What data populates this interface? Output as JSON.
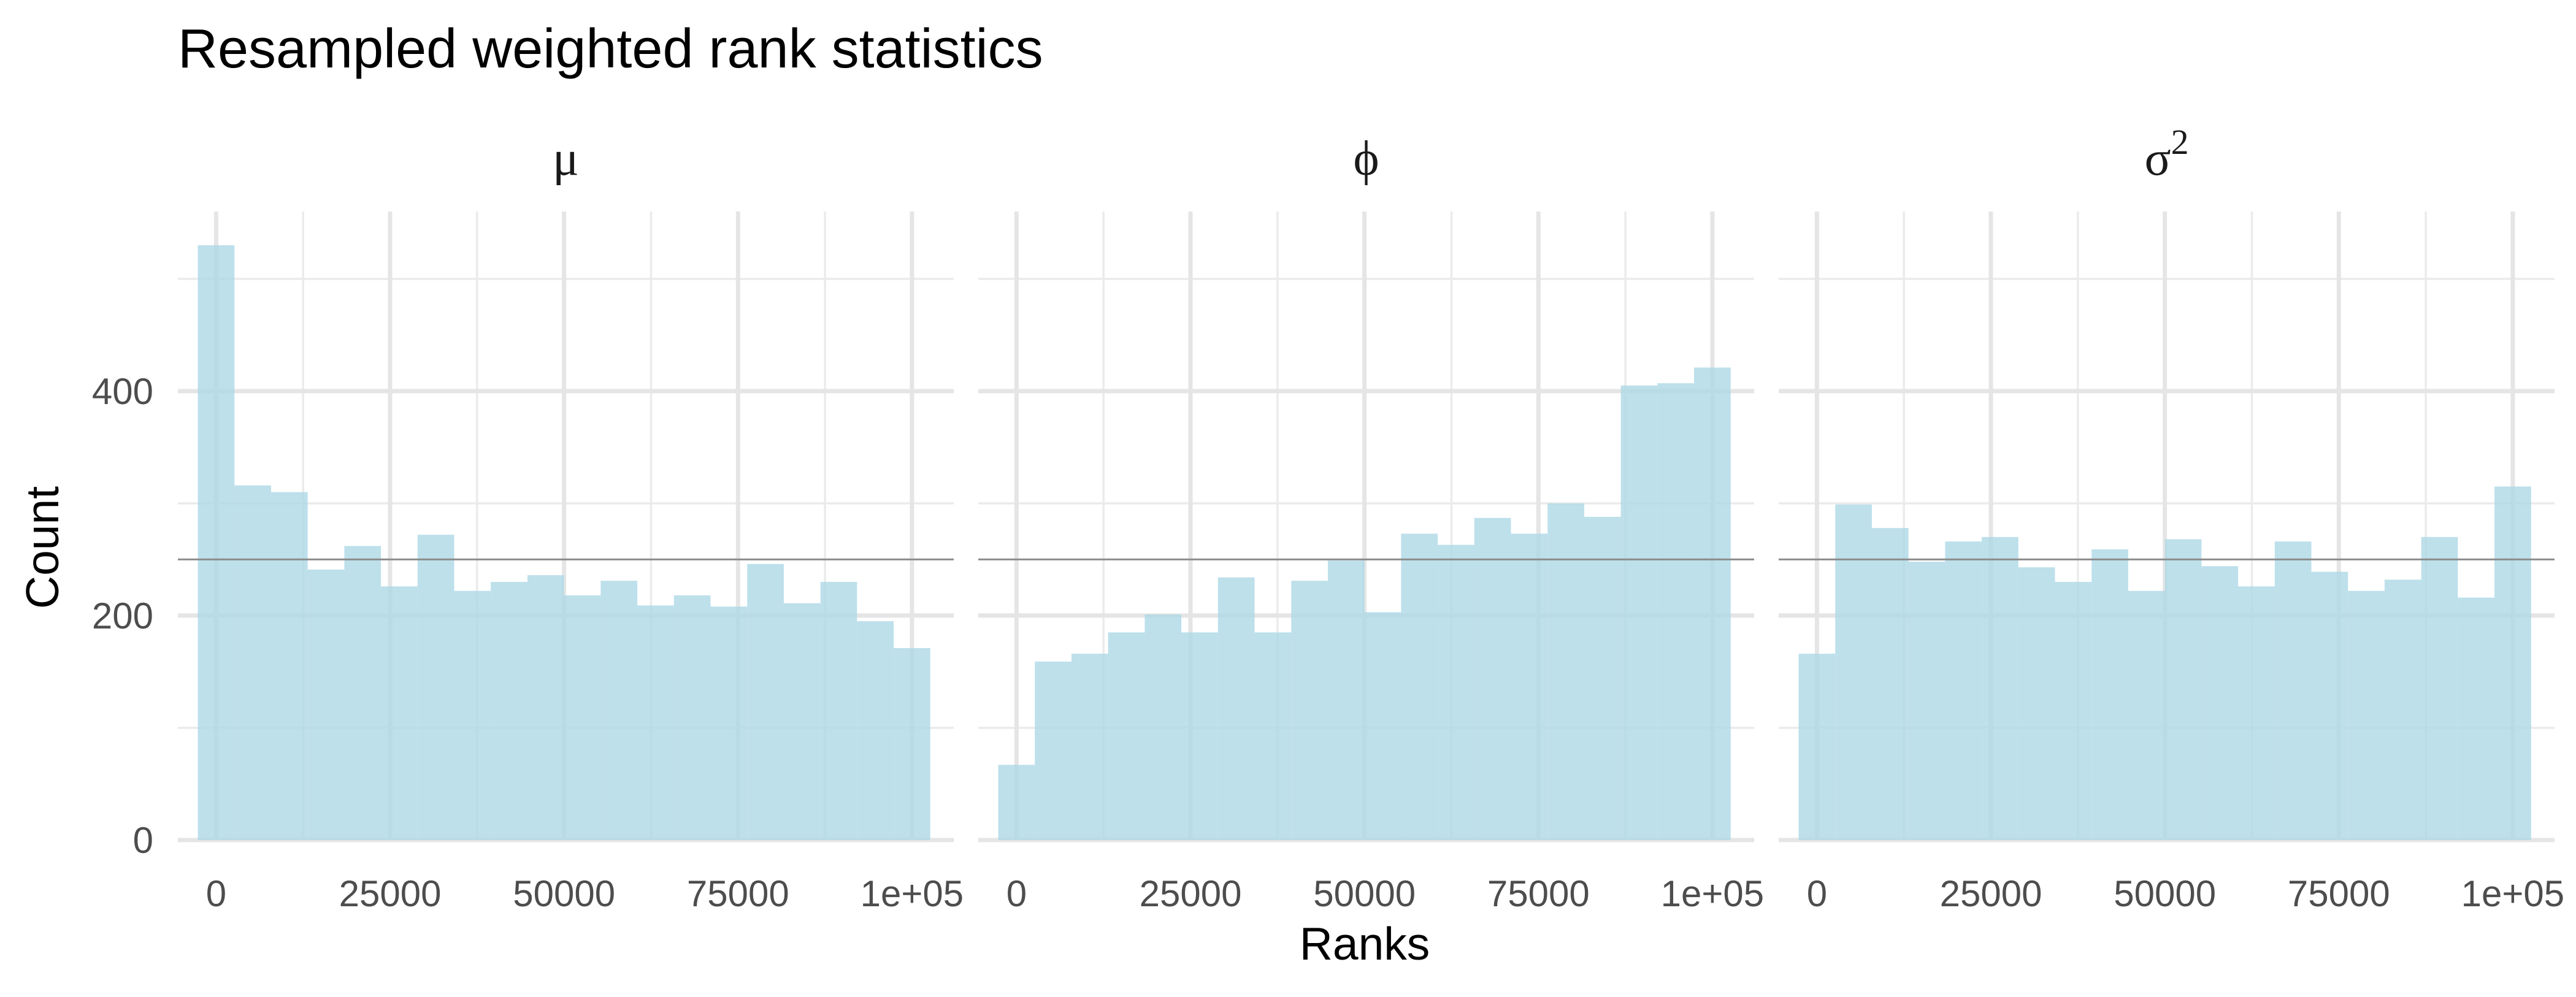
{
  "chart_data": {
    "type": "bar",
    "title": "Resampled weighted rank statistics",
    "xlabel": "Ranks",
    "ylabel": "Count",
    "xlim": [
      -5500,
      106000
    ],
    "ylim": [
      0,
      560
    ],
    "x_ticks": [
      0,
      25000,
      50000,
      75000,
      100000
    ],
    "x_tick_labels": [
      "0",
      "25000",
      "50000",
      "75000",
      "1e+05"
    ],
    "y_ticks": [
      0,
      200,
      400
    ],
    "y_tick_labels": [
      "0",
      "200",
      "400"
    ],
    "reference_line": 250,
    "grid": true,
    "legend": "none",
    "bar_color": "#add8e6",
    "bin_edges": [
      -2632,
      2632,
      7895,
      13158,
      18421,
      23684,
      28947,
      34211,
      39474,
      44737,
      50000,
      55263,
      60526,
      65789,
      71053,
      76316,
      81579,
      86842,
      92105,
      97368,
      102632
    ],
    "panels": [
      {
        "strip_base": "μ",
        "strip_sup": "",
        "values": [
          530,
          316,
          310,
          241,
          262,
          226,
          272,
          222,
          230,
          236,
          218,
          231,
          209,
          218,
          208,
          246,
          211,
          230,
          195,
          171
        ]
      },
      {
        "strip_base": "ϕ",
        "strip_sup": "",
        "values": [
          67,
          159,
          166,
          185,
          201,
          185,
          234,
          185,
          231,
          249,
          203,
          273,
          263,
          287,
          273,
          300,
          288,
          405,
          407,
          421
        ]
      },
      {
        "strip_base": "σ",
        "strip_sup": "2",
        "values": [
          166,
          299,
          278,
          248,
          266,
          270,
          243,
          230,
          259,
          222,
          268,
          244,
          226,
          266,
          239,
          222,
          232,
          270,
          216,
          315
        ]
      }
    ]
  }
}
